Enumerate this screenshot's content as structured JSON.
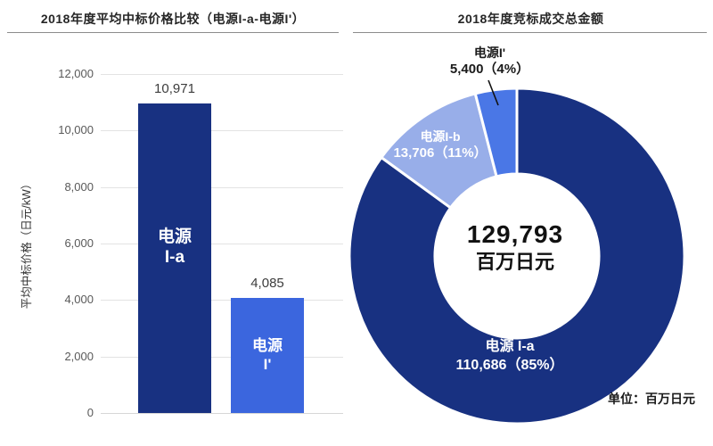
{
  "chart_data": [
    {
      "type": "bar",
      "title": "2018年度平均中标价格比较（电源I-a-电源I'）",
      "categories": [
        "电源 I-a",
        "电源 I'"
      ],
      "values": [
        10971,
        4085
      ],
      "value_labels": [
        "10,971",
        "4,085"
      ],
      "bar_inner_labels": [
        [
          "电源",
          "I-a"
        ],
        [
          "电源",
          "I'"
        ]
      ],
      "bar_colors": [
        "#183181",
        "#3b66de"
      ],
      "xlabel": "",
      "ylabel": "平均中标价格（日元/kW）",
      "ylim": [
        0,
        12000
      ],
      "y_ticks": [
        12000,
        10000,
        8000,
        6000,
        4000,
        2000,
        0
      ],
      "y_tick_labels": [
        "12,000",
        "10,000",
        "8,000",
        "6,000",
        "4,000",
        "2,000",
        "0"
      ],
      "grid": true,
      "legend": "none"
    },
    {
      "type": "pie",
      "subtype": "donut",
      "title": "2018年度竞标成交总金额",
      "center_value": "129,793",
      "center_unit": "百万日元",
      "unit_note": "单位：百万日元",
      "direction": "clockwise",
      "start_angle_deg": 0,
      "slices": [
        {
          "name": "电源 I-a",
          "value": 110686,
          "pct": 85,
          "label_line1": "电源 I-a",
          "label_line2": "110,686（85%）",
          "color": "#183181"
        },
        {
          "name": "电源I-b",
          "value": 13706,
          "pct": 11,
          "label_line1": "电源I-b",
          "label_line2": "13,706（11%）",
          "color": "#98aee9"
        },
        {
          "name": "电源I'",
          "value": 5400,
          "pct": 4,
          "label_line1": "电源I'",
          "label_line2": "5,400（4%）",
          "color": "#4a77e6"
        }
      ],
      "total_value": 129793
    }
  ],
  "colors": {
    "navy": "#183181",
    "medium_blue": "#3b66de",
    "light_blue": "#98aee9",
    "grid": "#e3e3e3",
    "tick_text": "#595959",
    "title_text": "#262626"
  }
}
